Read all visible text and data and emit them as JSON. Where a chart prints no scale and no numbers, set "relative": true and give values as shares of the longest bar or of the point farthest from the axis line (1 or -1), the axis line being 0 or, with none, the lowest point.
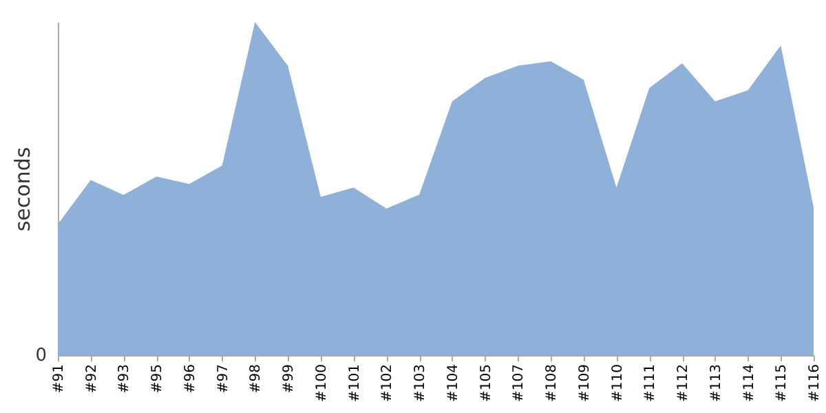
{
  "chart_data": {
    "type": "area",
    "ylabel": "seconds",
    "relative": true,
    "color": "#8fb1d9",
    "categories": [
      "#91",
      "#92",
      "#93",
      "#95",
      "#96",
      "#97",
      "#98",
      "#99",
      "#100",
      "#101",
      "#102",
      "#103",
      "#104",
      "#105",
      "#107",
      "#108",
      "#109",
      "#110",
      "#111",
      "#112",
      "#113",
      "#114",
      "#115",
      "#116"
    ],
    "values": [
      0.393,
      0.526,
      0.481,
      0.536,
      0.514,
      0.569,
      1,
      0.869,
      0.475,
      0.503,
      0.44,
      0.482,
      0.762,
      0.832,
      0.869,
      0.882,
      0.827,
      0.503,
      0.802,
      0.876,
      0.762,
      0.795,
      0.93,
      0.444
    ],
    "annotations": [
      "0"
    ],
    "grid": false
  }
}
